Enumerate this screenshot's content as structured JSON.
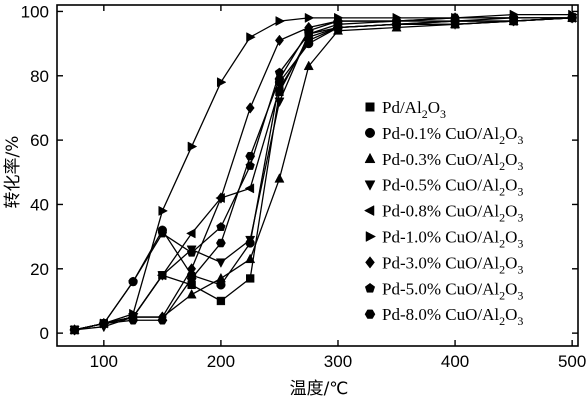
{
  "chart_data": {
    "type": "line",
    "xlabel": "温度/℃",
    "ylabel": "转化率/%",
    "xlim": [
      60,
      505
    ],
    "ylim": [
      -4,
      102
    ],
    "xticks": [
      100,
      200,
      300,
      400,
      500
    ],
    "yticks": [
      0,
      20,
      40,
      60,
      80,
      100
    ],
    "grid": false,
    "legend_position": "right",
    "series": [
      {
        "name": "Pd/Al2O3",
        "legend_parts": [
          [
            "Pd/Al",
            false
          ],
          [
            "2",
            true
          ],
          [
            "O",
            false
          ],
          [
            "3",
            true
          ]
        ],
        "marker": "square",
        "x": [
          75,
          100,
          125,
          150,
          175,
          200,
          225,
          250,
          275,
          300,
          350,
          400,
          450,
          500
        ],
        "y": [
          1,
          3,
          5,
          18,
          15,
          10,
          17,
          75,
          92,
          95,
          96,
          96,
          97,
          98
        ]
      },
      {
        "name": "Pd-0.1% CuO/Al2O3",
        "legend_parts": [
          [
            "Pd-0.1% CuO/Al",
            false
          ],
          [
            "2",
            true
          ],
          [
            "O",
            false
          ],
          [
            "3",
            true
          ]
        ],
        "marker": "circle",
        "x": [
          75,
          100,
          125,
          150,
          175,
          200,
          225,
          250,
          275,
          300,
          350,
          400,
          450,
          500
        ],
        "y": [
          1,
          3,
          16,
          32,
          18,
          15,
          28,
          78,
          90,
          95,
          96,
          97,
          97,
          98
        ]
      },
      {
        "name": "Pd-0.3% CuO/Al2O3",
        "legend_parts": [
          [
            "Pd-0.3% CuO/Al",
            false
          ],
          [
            "2",
            true
          ],
          [
            "O",
            false
          ],
          [
            "3",
            true
          ]
        ],
        "marker": "triangle-up",
        "x": [
          75,
          100,
          125,
          150,
          175,
          200,
          225,
          250,
          275,
          300,
          350,
          400,
          450,
          500
        ],
        "y": [
          1,
          3,
          5,
          5,
          12,
          17,
          23,
          48,
          83,
          94,
          95,
          96,
          97,
          98
        ]
      },
      {
        "name": "Pd-0.5% CuO/Al2O3",
        "legend_parts": [
          [
            "Pd-0.5% CuO/Al",
            false
          ],
          [
            "2",
            true
          ],
          [
            "O",
            false
          ],
          [
            "3",
            true
          ]
        ],
        "marker": "triangle-down",
        "x": [
          75,
          100,
          125,
          150,
          175,
          200,
          225,
          250,
          275,
          300,
          350,
          400,
          450,
          500
        ],
        "y": [
          1,
          2,
          5,
          18,
          26,
          22,
          29,
          72,
          93,
          95,
          96,
          96,
          97,
          98
        ]
      },
      {
        "name": "Pd-0.8% CuO/Al2O3",
        "legend_parts": [
          [
            "Pd-0.8% CuO/Al",
            false
          ],
          [
            "2",
            true
          ],
          [
            "O",
            false
          ],
          [
            "3",
            true
          ]
        ],
        "marker": "triangle-left",
        "x": [
          75,
          100,
          125,
          150,
          175,
          200,
          225,
          250,
          275,
          300,
          350,
          400,
          450,
          500
        ],
        "y": [
          1,
          3,
          5,
          18,
          31,
          42,
          45,
          76,
          91,
          95,
          96,
          97,
          97,
          98
        ]
      },
      {
        "name": "Pd-1.0% CuO/Al2O3",
        "legend_parts": [
          [
            "Pd-1.0% CuO/Al",
            false
          ],
          [
            "2",
            true
          ],
          [
            "O",
            false
          ],
          [
            "3",
            true
          ]
        ],
        "marker": "triangle-right",
        "x": [
          75,
          100,
          125,
          150,
          175,
          200,
          225,
          250,
          275,
          300,
          350,
          400,
          450,
          500
        ],
        "y": [
          1,
          3,
          6,
          38,
          58,
          78,
          92,
          97,
          98,
          98,
          98,
          98,
          99,
          99
        ]
      },
      {
        "name": "Pd-3.0% CuO/Al2O3",
        "legend_parts": [
          [
            "Pd-3.0% CuO/Al",
            false
          ],
          [
            "2",
            true
          ],
          [
            "O",
            false
          ],
          [
            "3",
            true
          ]
        ],
        "marker": "diamond",
        "x": [
          75,
          100,
          125,
          150,
          175,
          200,
          225,
          250,
          275,
          300,
          350,
          400,
          450,
          500
        ],
        "y": [
          1,
          3,
          5,
          5,
          20,
          42,
          70,
          91,
          95,
          97,
          97,
          98,
          98,
          98
        ]
      },
      {
        "name": "Pd-5.0% CuO/Al2O3",
        "legend_parts": [
          [
            "Pd-5.0% CuO/Al",
            false
          ],
          [
            "2",
            true
          ],
          [
            "O",
            false
          ],
          [
            "3",
            true
          ]
        ],
        "marker": "pentagon",
        "x": [
          75,
          100,
          125,
          150,
          175,
          200,
          225,
          250,
          275,
          300,
          350,
          400,
          450,
          500
        ],
        "y": [
          1,
          3,
          16,
          31,
          25,
          33,
          52,
          81,
          93,
          96,
          97,
          97,
          98,
          98
        ]
      },
      {
        "name": "Pd-8.0% CuO/Al2O3",
        "legend_parts": [
          [
            "Pd-8.0% CuO/Al",
            false
          ],
          [
            "2",
            true
          ],
          [
            "O",
            false
          ],
          [
            "3",
            true
          ]
        ],
        "marker": "hexagon",
        "x": [
          75,
          100,
          125,
          150,
          175,
          200,
          225,
          250,
          275,
          300,
          350,
          400,
          450,
          500
        ],
        "y": [
          1,
          3,
          4,
          4,
          17,
          28,
          55,
          79,
          94,
          97,
          97,
          98,
          98,
          98
        ]
      }
    ]
  }
}
